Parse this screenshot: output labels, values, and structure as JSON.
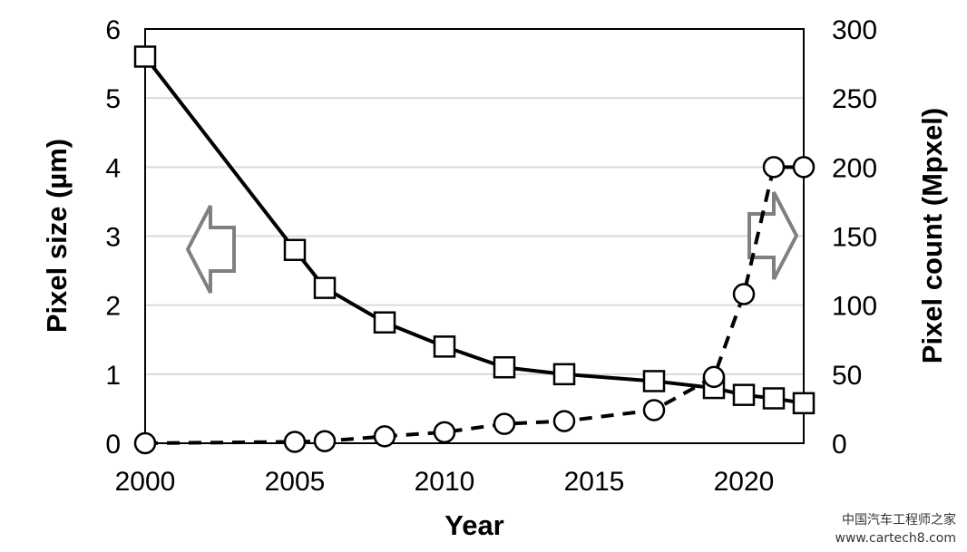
{
  "chart_data": {
    "type": "line",
    "title": "",
    "xlabel": "Year",
    "ylabel_left": "Pixel size (µm)",
    "ylabel_right": "Pixel count (Mpxel)",
    "xlim": [
      2000,
      2022
    ],
    "ylim_left": [
      0,
      6
    ],
    "ylim_right": [
      0,
      300
    ],
    "x_ticks": [
      2000,
      2005,
      2010,
      2015,
      2020
    ],
    "y_left_ticks": [
      0,
      1,
      2,
      3,
      4,
      5,
      6
    ],
    "y_right_ticks": [
      0,
      50,
      100,
      150,
      200,
      250,
      300
    ],
    "grid": "horizontal",
    "series": [
      {
        "axis": "left",
        "marker": "square",
        "line": "solid",
        "x": [
          2000,
          2005,
          2006,
          2008,
          2010,
          2012,
          2014,
          2017,
          2019,
          2020,
          2021,
          2022
        ],
        "values": [
          5.6,
          2.8,
          2.25,
          1.75,
          1.4,
          1.1,
          1.0,
          0.9,
          0.8,
          0.7,
          0.65,
          0.58
        ]
      },
      {
        "axis": "right",
        "marker": "circle",
        "line": "dashed",
        "x": [
          2000,
          2005,
          2006,
          2008,
          2010,
          2012,
          2014,
          2017,
          2019,
          2020,
          2021,
          2022
        ],
        "values": [
          0,
          1,
          1.5,
          5,
          8,
          14,
          16,
          24,
          48,
          108,
          200,
          200
        ]
      }
    ],
    "annotations": [
      {
        "type": "arrow",
        "direction": "left",
        "meaning": "left-axis series"
      },
      {
        "type": "arrow",
        "direction": "right",
        "meaning": "right-axis series"
      }
    ]
  },
  "watermark": {
    "line1": "中国汽车工程师之家",
    "line2": "www.cartech8.com"
  },
  "colors": {
    "line": "#000000",
    "grid": "#d9d9d9",
    "arrow": "#808080",
    "marker_fill": "#ffffff"
  }
}
